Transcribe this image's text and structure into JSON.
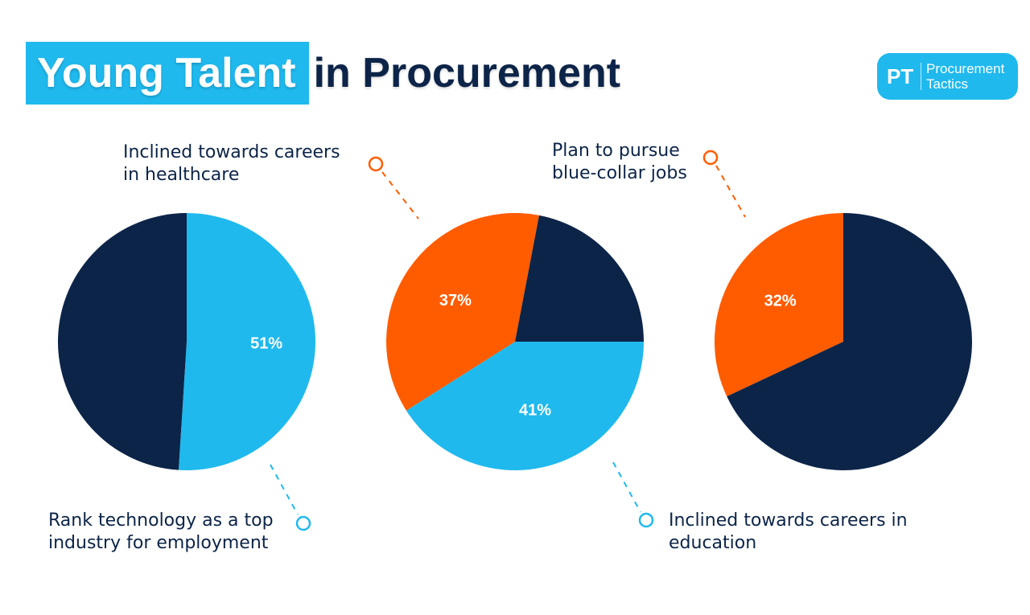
{
  "title": {
    "highlight": "Young Talent",
    "rest": "in Procurement"
  },
  "logo": {
    "mark": "PT",
    "line1": "Procurement",
    "line2": "Tactics"
  },
  "colors": {
    "navy": "#0c2448",
    "cyan": "#1fb9ee",
    "orange": "#ff5c00",
    "white": "#ffffff"
  },
  "chart_data": [
    {
      "type": "pie",
      "slices": [
        {
          "label": "Rank technology as a top industry for employment",
          "value": 51,
          "display": "51%",
          "color": "#1fb9ee"
        },
        {
          "label": "",
          "value": 49,
          "display": "",
          "color": "#0c2448"
        }
      ]
    },
    {
      "type": "pie",
      "slices": [
        {
          "label": "Inclined towards careers in education",
          "value": 41,
          "display": "41%",
          "color": "#1fb9ee"
        },
        {
          "label": "Inclined towards careers in healthcare",
          "value": 37,
          "display": "37%",
          "color": "#ff5c00"
        },
        {
          "label": "",
          "value": 22,
          "display": "",
          "color": "#0c2448"
        }
      ]
    },
    {
      "type": "pie",
      "slices": [
        {
          "label": "Plan to pursue blue-collar jobs",
          "value": 32,
          "display": "32%",
          "color": "#ff5c00"
        },
        {
          "label": "",
          "value": 68,
          "display": "",
          "color": "#0c2448"
        }
      ]
    }
  ],
  "annotations": {
    "healthcare": {
      "line1": "Inclined towards careers",
      "line2": "in healthcare"
    },
    "bluecollar": {
      "line1": "Plan to pursue",
      "line2": "blue-collar jobs"
    },
    "technology": {
      "line1": "Rank technology as a top",
      "line2": "industry for employment"
    },
    "education": {
      "line1": "Inclined towards careers in",
      "line2": "education"
    }
  }
}
